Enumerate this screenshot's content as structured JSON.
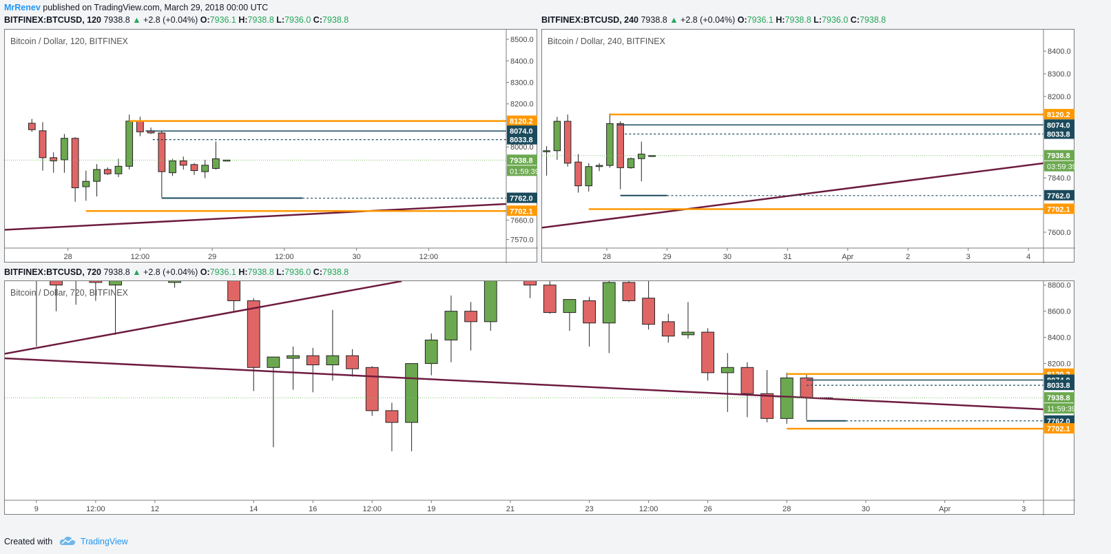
{
  "header": {
    "author": "MrRenev",
    "published_text": "published on TradingView.com, March 29, 2018 00:00 UTC"
  },
  "footer": {
    "created_with": "Created with",
    "brand": "TradingView"
  },
  "colors": {
    "up": "#6ba84f",
    "down": "#e06666",
    "orange": "#ff9800",
    "navy": "#1a4a5c",
    "trend": "#6d1b3f",
    "dotted": "#7fbf6a"
  },
  "panels": [
    {
      "symbol": "BITFINEX:BTCUSD, 120",
      "last": "7938.8",
      "change": "+2.8 (+0.04%)",
      "open_label": "O:",
      "open": "7936.1",
      "high_label": "H:",
      "high": "7938.8",
      "low_label": "L:",
      "low": "7936.0",
      "close_label": "C:",
      "close": "7938.8"
    },
    {
      "symbol": "BITFINEX:BTCUSD, 240",
      "last": "7938.8",
      "change": "+2.8 (+0.04%)",
      "open_label": "O:",
      "open": "7936.1",
      "high_label": "H:",
      "high": "7938.8",
      "low_label": "L:",
      "low": "7936.0",
      "close_label": "C:",
      "close": "7938.8"
    },
    {
      "symbol": "BITFINEX:BTCUSD, 720",
      "last": "7938.8",
      "change": "+2.8 (+0.04%)",
      "open_label": "O:",
      "open": "7936.1",
      "high_label": "H:",
      "high": "7938.8",
      "low_label": "L:",
      "low": "7936.0",
      "close_label": "C:",
      "close": "7938.8"
    }
  ],
  "chart_data": [
    {
      "type": "candlestick",
      "title": "Bitcoin / Dollar, 120, BITFINEX",
      "ylim": [
        7530,
        8545
      ],
      "y_ticks": [
        "8500.0",
        "8400.0",
        "8300.0",
        "8200.0",
        "8000.0",
        "7660.0",
        "7570.0"
      ],
      "y_tick_values": [
        8500,
        8400,
        8300,
        8200,
        8000,
        7660,
        7570
      ],
      "x_ticks": [
        "28",
        "12:00",
        "29",
        "12:00",
        "30",
        "12:00"
      ],
      "x_tick_positions": [
        2,
        6,
        10,
        14,
        18,
        22
      ],
      "x_range": [
        -1.5,
        26.3
      ],
      "candles": [
        {
          "x": 0,
          "o": 8110,
          "h": 8130,
          "l": 8070,
          "c": 8080
        },
        {
          "x": 0.6,
          "o": 8075,
          "h": 8115,
          "l": 7890,
          "c": 7950
        },
        {
          "x": 1.2,
          "o": 7950,
          "h": 7975,
          "l": 7880,
          "c": 7935
        },
        {
          "x": 1.8,
          "o": 7940,
          "h": 8060,
          "l": 7880,
          "c": 8040
        },
        {
          "x": 2.4,
          "o": 8040,
          "h": 8045,
          "l": 7745,
          "c": 7810
        },
        {
          "x": 3.0,
          "o": 7815,
          "h": 7890,
          "l": 7750,
          "c": 7840
        },
        {
          "x": 3.6,
          "o": 7840,
          "h": 7920,
          "l": 7770,
          "c": 7895
        },
        {
          "x": 4.2,
          "o": 7895,
          "h": 7905,
          "l": 7870,
          "c": 7875
        },
        {
          "x": 4.8,
          "o": 7875,
          "h": 7945,
          "l": 7860,
          "c": 7910
        },
        {
          "x": 5.4,
          "o": 7910,
          "h": 8150,
          "l": 7895,
          "c": 8120
        },
        {
          "x": 6.0,
          "o": 8120,
          "h": 8140,
          "l": 8050,
          "c": 8070
        },
        {
          "x": 6.6,
          "o": 8075,
          "h": 8090,
          "l": 8060,
          "c": 8065
        },
        {
          "x": 7.2,
          "o": 8065,
          "h": 8075,
          "l": 7765,
          "c": 7885
        },
        {
          "x": 7.8,
          "o": 7880,
          "h": 7945,
          "l": 7865,
          "c": 7935
        },
        {
          "x": 8.4,
          "o": 7935,
          "h": 7955,
          "l": 7895,
          "c": 7915
        },
        {
          "x": 9.0,
          "o": 7918,
          "h": 7925,
          "l": 7870,
          "c": 7890
        },
        {
          "x": 9.6,
          "o": 7885,
          "h": 7940,
          "l": 7855,
          "c": 7915
        },
        {
          "x": 10.2,
          "o": 7900,
          "h": 8025,
          "l": 7895,
          "c": 7945
        },
        {
          "x": 10.8,
          "o": 7936,
          "h": 7939,
          "l": 7936,
          "c": 7939
        }
      ],
      "levels": [
        {
          "value": 8120.2,
          "label": "8120.2",
          "color": "orange",
          "style": "solid",
          "from": 5.4
        },
        {
          "value": 8074.0,
          "label": "8074.0",
          "color": "navy",
          "style": "solid",
          "from": 6.3
        },
        {
          "value": 8033.8,
          "label": "8033.8",
          "color": "navy",
          "style": "dashed",
          "from": 6.7
        },
        {
          "value": 7938.8,
          "label": "7938.8",
          "color": "green",
          "style": "dotted",
          "from": -1.5
        },
        {
          "value": 7762.0,
          "label": "7762.0",
          "color": "navy",
          "style": "solid",
          "from": 7.2,
          "to": 15.0,
          "dashed_after": true
        },
        {
          "value": 7702.1,
          "label": "7702.1",
          "color": "orange",
          "style": "solid",
          "from": 3.0
        }
      ],
      "countdown": "01:59:39",
      "trendline": {
        "x1": -1.5,
        "y1": 7615,
        "x2": 26.3,
        "y2": 7735
      }
    },
    {
      "type": "candlestick",
      "title": "Bitcoin / Dollar, 240, BITFINEX",
      "ylim": [
        7530,
        8495
      ],
      "y_ticks": [
        "8400.0",
        "8300.0",
        "8200.0",
        "7840.0",
        "7600.0"
      ],
      "y_tick_values": [
        8400,
        8300,
        8200,
        7840,
        7600
      ],
      "x_ticks": [
        "28",
        "29",
        "30",
        "31",
        "Apr",
        "2",
        "3",
        "4"
      ],
      "x_tick_positions": [
        2,
        4,
        6,
        8,
        10,
        12,
        14,
        16
      ],
      "x_range": [
        -0.15,
        16.5
      ],
      "candles": [
        {
          "x": 0,
          "o": 7960,
          "h": 7980,
          "l": 7850,
          "c": 7960
        },
        {
          "x": 0.35,
          "o": 7960,
          "h": 8110,
          "l": 7920,
          "c": 8090
        },
        {
          "x": 0.7,
          "o": 8090,
          "h": 8120,
          "l": 7890,
          "c": 7905
        },
        {
          "x": 1.05,
          "o": 7910,
          "h": 7945,
          "l": 7775,
          "c": 7805
        },
        {
          "x": 1.4,
          "o": 7805,
          "h": 7905,
          "l": 7780,
          "c": 7890
        },
        {
          "x": 1.75,
          "o": 7890,
          "h": 7905,
          "l": 7870,
          "c": 7895
        },
        {
          "x": 2.1,
          "o": 7895,
          "h": 8125,
          "l": 7885,
          "c": 8080
        },
        {
          "x": 2.45,
          "o": 8080,
          "h": 8090,
          "l": 7790,
          "c": 7885
        },
        {
          "x": 2.8,
          "o": 7885,
          "h": 7930,
          "l": 7880,
          "c": 7925
        },
        {
          "x": 3.15,
          "o": 7925,
          "h": 8000,
          "l": 7825,
          "c": 7945
        },
        {
          "x": 3.5,
          "o": 7936,
          "h": 7939,
          "l": 7936,
          "c": 7939
        }
      ],
      "levels": [
        {
          "value": 8120.2,
          "label": "8120.2",
          "color": "orange",
          "style": "solid",
          "from": 2.1
        },
        {
          "value": 8074.0,
          "label": "8074.0",
          "color": "navy",
          "style": "solid",
          "from": 2.35
        },
        {
          "value": 8033.8,
          "label": "8033.8",
          "color": "navy",
          "style": "dashed",
          "from": 2.6
        },
        {
          "value": 7938.8,
          "label": "7938.8",
          "color": "green",
          "style": "dotted",
          "from": -0.15
        },
        {
          "value": 7762.0,
          "label": "7762.0",
          "color": "navy",
          "style": "solid",
          "from": 2.45,
          "to": 4.0,
          "dashed_after": true
        },
        {
          "value": 7702.1,
          "label": "7702.1",
          "color": "orange",
          "style": "solid",
          "from": 1.4
        }
      ],
      "countdown": "03:59:39",
      "trendline": {
        "x1": -0.15,
        "y1": 7620,
        "x2": 16.5,
        "y2": 7905
      }
    },
    {
      "type": "candlestick",
      "title": "Bitcoin / Dollar, 720, BITFINEX",
      "ylim": [
        7155,
        8830
      ],
      "y_ticks": [
        "8800.0",
        "8600.0",
        "8400.0",
        "8200.0"
      ],
      "y_tick_values": [
        8800,
        8600,
        8400,
        8200
      ],
      "x_ticks": [
        "9",
        "12:00",
        "12",
        "14",
        "16",
        "12:00",
        "19",
        "21",
        "23",
        "12:00",
        "26",
        "28",
        "30",
        "Apr",
        "3"
      ],
      "x_tick_positions": [
        0,
        3,
        6,
        11,
        14,
        17,
        20,
        24,
        28,
        31,
        34,
        38,
        42,
        46,
        50
      ],
      "x_range": [
        -1.6,
        51.0
      ],
      "candles": [
        {
          "x": 0,
          "o": 8950,
          "h": 9100,
          "l": 8330,
          "c": 8900
        },
        {
          "x": 1,
          "o": 8900,
          "h": 8950,
          "l": 8600,
          "c": 8800
        },
        {
          "x": 2,
          "o": 8850,
          "h": 8950,
          "l": 8650,
          "c": 8900
        },
        {
          "x": 3,
          "o": 8900,
          "h": 8950,
          "l": 8680,
          "c": 8820
        },
        {
          "x": 4,
          "o": 8800,
          "h": 8950,
          "l": 8420,
          "c": 8900
        },
        {
          "x": 7,
          "o": 8820,
          "h": 8950,
          "l": 8780,
          "c": 8900
        },
        {
          "x": 10,
          "o": 8950,
          "h": 9000,
          "l": 8600,
          "c": 8680
        },
        {
          "x": 11,
          "o": 8680,
          "h": 8700,
          "l": 7990,
          "c": 8170
        },
        {
          "x": 12,
          "o": 8170,
          "h": 8250,
          "l": 7560,
          "c": 8250
        },
        {
          "x": 13,
          "o": 8240,
          "h": 8330,
          "l": 8000,
          "c": 8260
        },
        {
          "x": 14,
          "o": 8260,
          "h": 8320,
          "l": 7980,
          "c": 8190
        },
        {
          "x": 15,
          "o": 8190,
          "h": 8610,
          "l": 8070,
          "c": 8260
        },
        {
          "x": 16,
          "o": 8260,
          "h": 8310,
          "l": 8100,
          "c": 8160
        },
        {
          "x": 17,
          "o": 8170,
          "h": 8180,
          "l": 7800,
          "c": 7840
        },
        {
          "x": 18,
          "o": 7840,
          "h": 7900,
          "l": 7530,
          "c": 7750
        },
        {
          "x": 19,
          "o": 7750,
          "h": 8190,
          "l": 7530,
          "c": 8200
        },
        {
          "x": 20,
          "o": 8200,
          "h": 8430,
          "l": 8110,
          "c": 8380
        },
        {
          "x": 21,
          "o": 8380,
          "h": 8720,
          "l": 8210,
          "c": 8600
        },
        {
          "x": 22,
          "o": 8600,
          "h": 8670,
          "l": 8300,
          "c": 8520
        },
        {
          "x": 23,
          "o": 8520,
          "h": 8930,
          "l": 8450,
          "c": 8850
        },
        {
          "x": 25,
          "o": 8850,
          "h": 8930,
          "l": 8700,
          "c": 8800
        },
        {
          "x": 26,
          "o": 8800,
          "h": 8900,
          "l": 8580,
          "c": 8590
        },
        {
          "x": 27,
          "o": 8590,
          "h": 8680,
          "l": 8450,
          "c": 8690
        },
        {
          "x": 28,
          "o": 8680,
          "h": 8710,
          "l": 8330,
          "c": 8510
        },
        {
          "x": 29,
          "o": 8510,
          "h": 8900,
          "l": 8280,
          "c": 8820
        },
        {
          "x": 30,
          "o": 8820,
          "h": 8850,
          "l": 8670,
          "c": 8680
        },
        {
          "x": 31,
          "o": 8700,
          "h": 8870,
          "l": 8460,
          "c": 8500
        },
        {
          "x": 32,
          "o": 8520,
          "h": 8580,
          "l": 8360,
          "c": 8410
        },
        {
          "x": 33,
          "o": 8420,
          "h": 8670,
          "l": 8390,
          "c": 8440
        },
        {
          "x": 34,
          "o": 8440,
          "h": 8470,
          "l": 8070,
          "c": 8130
        },
        {
          "x": 35,
          "o": 8130,
          "h": 8280,
          "l": 7830,
          "c": 8170
        },
        {
          "x": 36,
          "o": 8170,
          "h": 8210,
          "l": 7790,
          "c": 7970
        },
        {
          "x": 37,
          "o": 7970,
          "h": 8150,
          "l": 7750,
          "c": 7780
        },
        {
          "x": 38,
          "o": 7780,
          "h": 8130,
          "l": 7740,
          "c": 8090
        },
        {
          "x": 39,
          "o": 8090,
          "h": 8120,
          "l": 7770,
          "c": 7940
        },
        {
          "x": 40,
          "o": 7936,
          "h": 7939,
          "l": 7936,
          "c": 7939
        }
      ],
      "levels": [
        {
          "value": 8120.2,
          "label": "8120.2",
          "color": "orange",
          "style": "solid",
          "from": 38
        },
        {
          "value": 8074.0,
          "label": "8074.0",
          "color": "navy",
          "style": "solid",
          "from": 39
        },
        {
          "value": 8033.8,
          "label": "8033.8",
          "color": "navy",
          "style": "dashed",
          "from": 39
        },
        {
          "value": 7938.8,
          "label": "7938.8",
          "color": "green",
          "style": "dotted",
          "from": -1.6
        },
        {
          "value": 7762.0,
          "label": "7762.0",
          "color": "navy",
          "style": "solid",
          "from": 39,
          "to": 41,
          "dashed_after": true
        },
        {
          "value": 7702.1,
          "label": "7702.1",
          "color": "orange",
          "style": "solid",
          "from": 38
        }
      ],
      "countdown": "11:59:39",
      "trendline": {
        "x1": -1.6,
        "y1": 8240,
        "x2": 51.0,
        "y2": 7850
      },
      "trendline_upper": {
        "x1": -1.6,
        "y1": 8275,
        "x2": 18.5,
        "y2": 8830
      }
    }
  ]
}
